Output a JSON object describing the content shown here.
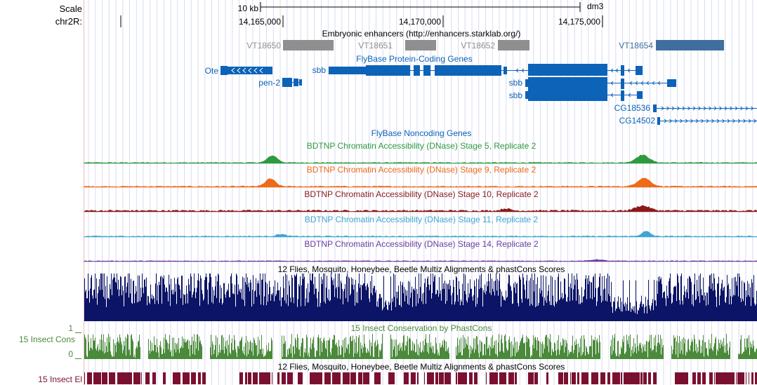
{
  "ruler": {
    "scale_label": "Scale",
    "chrom_label": "chr2R:",
    "scalebar_label": "10 kb",
    "assembly": "dm3",
    "positions": [
      "14,165,000",
      "14,170,000",
      "14,175,000"
    ]
  },
  "enhancers": {
    "title": "Embryonic enhancers (http://enhancers.starklab.org/)",
    "items": [
      {
        "name": "VT18650",
        "color": "#8f8f8f"
      },
      {
        "name": "VT18651",
        "color": "#8f8f8f"
      },
      {
        "name": "VT18652",
        "color": "#8f8f8f"
      },
      {
        "name": "VT18654",
        "color": "#3e6f9f"
      }
    ]
  },
  "genes": {
    "title": "FlyBase Protein-Coding Genes",
    "color": "#0c63b8",
    "labels": [
      "Ote",
      "pen-2",
      "sbb",
      "sbb",
      "sbb",
      "CG18536",
      "CG14502"
    ]
  },
  "noncoding": {
    "title": "FlyBase Noncoding Genes",
    "color": "#0c63b8"
  },
  "dnase": [
    {
      "title": "BDTNP Chromatin Accessibility (DNase) Stage 5, Replicate 2",
      "color": "#2e9a3e"
    },
    {
      "title": "BDTNP Chromatin Accessibility (DNase) Stage 9, Replicate 2",
      "color": "#ee6b18"
    },
    {
      "title": "BDTNP Chromatin Accessibility (DNase) Stage 10, Replicate 2",
      "color": "#8b1a1a"
    },
    {
      "title": "BDTNP Chromatin Accessibility (DNase) Stage 11, Replicate 2",
      "color": "#3ea6d0"
    },
    {
      "title": "BDTNP Chromatin Accessibility (DNase) Stage 14, Replicate 2",
      "color": "#6a3da0"
    }
  ],
  "multiz": {
    "title": "12 Flies, Mosquito, Honeybee, Beetle Multiz Alignments & phastCons Scores",
    "color": "#0b1466"
  },
  "cons": {
    "title": "15 Insect Conservation by PhastCons",
    "side_label": "15 Insect Cons",
    "axis_top": "1",
    "axis_bottom": "0",
    "color": "#4a8a3a"
  },
  "elements": {
    "title": "12 Flies, Mosquito, Honeybee, Beetle Multiz Alignments & phastCons Scores",
    "side_label": "15 Insect El",
    "color": "#7a1030"
  }
}
